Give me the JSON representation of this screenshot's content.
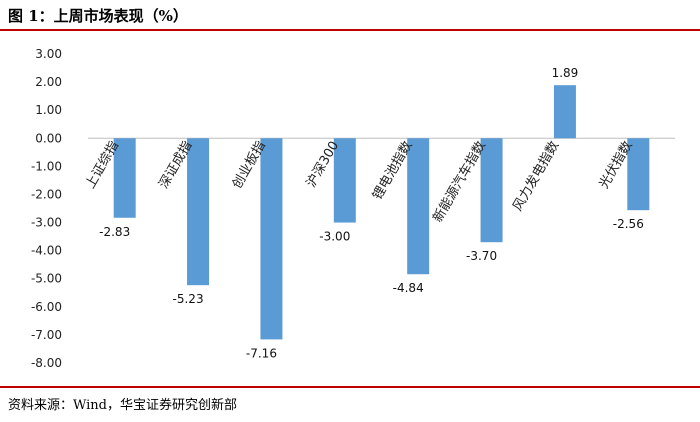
{
  "figure": {
    "title": "图 1：上周市场表现（%）",
    "source": "资料来源：Wind，华宝证券研究创新部"
  },
  "chart_data": {
    "type": "bar",
    "categories": [
      "上证综指",
      "深证成指",
      "创业板指",
      "沪深300",
      "锂电池指数",
      "新能源汽车指数",
      "风力发电指数",
      "光伏指数"
    ],
    "values": [
      -2.83,
      -5.23,
      -7.16,
      -3.0,
      -4.84,
      -3.7,
      1.89,
      -2.56
    ],
    "value_labels": [
      "-2.83",
      "-5.23",
      "-7.16",
      "-3.00",
      "-4.84",
      "-3.70",
      "1.89",
      "-2.56"
    ],
    "ylim": [
      -8,
      3
    ],
    "yticks": [
      "3.00",
      "2.00",
      "1.00",
      "0.00",
      "-1.00",
      "-2.00",
      "-3.00",
      "-4.00",
      "-5.00",
      "-6.00",
      "-7.00",
      "-8.00"
    ],
    "grid": false,
    "legend": "none",
    "bar_color": "#5b9bd5"
  }
}
